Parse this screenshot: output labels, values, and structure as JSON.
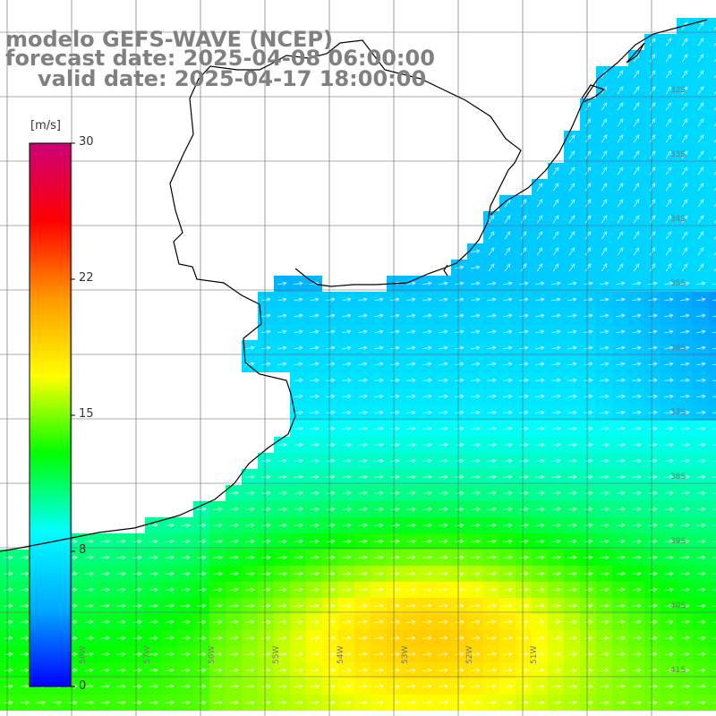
{
  "header": {
    "line1": "modelo GEFS-WAVE (NCEP)",
    "line2": "forecast date: 2025-04-08 06:00:00",
    "line3": "valid date: 2025-04-17 18:00:00"
  },
  "colorbar": {
    "unit": "[m/s]",
    "ticks": [
      "30",
      "22",
      "15",
      "8",
      "0"
    ],
    "colors": [
      "#0000ff",
      "#00aaff",
      "#00ffff",
      "#00ff00",
      "#ffff00",
      "#ff9900",
      "#ff0000",
      "#cc0077"
    ]
  },
  "axis_labels": {
    "lat": [
      "32S",
      "33S",
      "34S",
      "35S",
      "36S",
      "37S",
      "38S",
      "39S",
      "40S",
      "41S"
    ],
    "lon": [
      "58W",
      "57W",
      "56W",
      "55W",
      "54W",
      "53W",
      "52W",
      "51W"
    ]
  },
  "colors": {
    "grid": "#606060",
    "coast": "#000000",
    "arrow": "#ffffff",
    "header_text": "#808080"
  }
}
